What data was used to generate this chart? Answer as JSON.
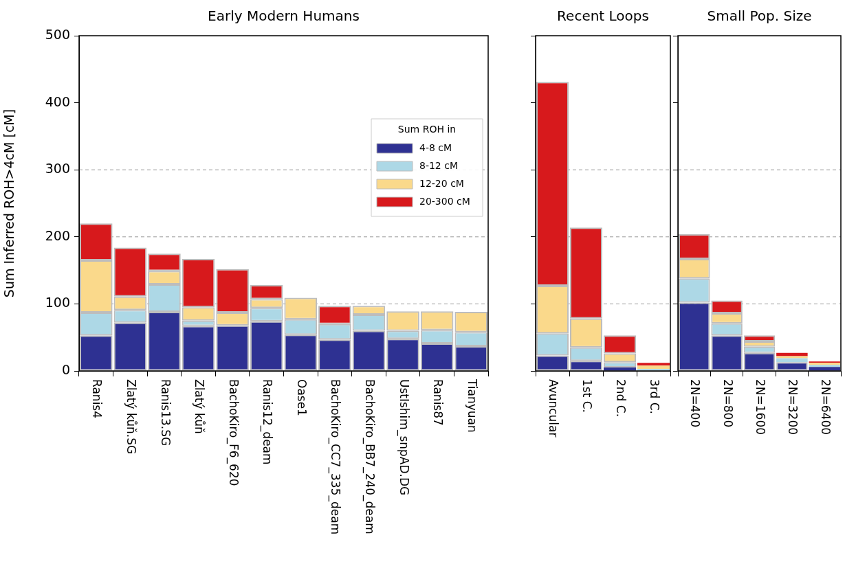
{
  "chart_data": [
    {
      "type": "bar",
      "title": "Early Modern Humans",
      "ylabel": "Sum Inferred ROH>4cM [cM]",
      "legend_title": "Sum ROH in",
      "legend": "right",
      "stacked": true,
      "grid": false,
      "categories": [
        "Ranis4",
        "Zlatý kůň.SG",
        "Ranis13.SG",
        "Zlatý kůň",
        "BachoKiro_F6_620",
        "Ranis12_deam",
        "Oase1",
        "BachoKiro_CC7_335_deam",
        "BachoKiro_BB7_240_deam",
        "UstIshim_snpAD.DG",
        "Ranis87",
        "Tianyuan"
      ],
      "ylim": [
        0,
        500
      ],
      "yticks": [
        0,
        100,
        200,
        300,
        400,
        500
      ],
      "ref_lines": [
        {
          "axis": "y",
          "value": 100,
          "color": "#999999",
          "line_style": "dashed"
        },
        {
          "axis": "y",
          "value": 200,
          "color": "#999999",
          "line_style": "dashed"
        },
        {
          "axis": "y",
          "value": 300,
          "color": "#999999",
          "line_style": "dashed"
        }
      ],
      "series": [
        {
          "name": "4-8 cM",
          "color": "#2e3192",
          "values": [
            53,
            72,
            88,
            67,
            68,
            74,
            54,
            47,
            60,
            48,
            41,
            37
          ]
        },
        {
          "name": "8-12 cM",
          "color": "#add8e6",
          "values": [
            34,
            19,
            41,
            8,
            0,
            20,
            23,
            23,
            24,
            12,
            20,
            21
          ]
        },
        {
          "name": "12-20 cM",
          "color": "#fad98b",
          "values": [
            78,
            20,
            20,
            20,
            19,
            13,
            32,
            0,
            13,
            29,
            28,
            30
          ]
        },
        {
          "name": "20-300 cM",
          "color": "#d7191c",
          "values": [
            55,
            73,
            26,
            72,
            65,
            21,
            0,
            27,
            0,
            0,
            0,
            0
          ]
        }
      ]
    },
    {
      "type": "bar",
      "title": "Recent Loops",
      "stacked": true,
      "grid": false,
      "tick_labels": "x",
      "categories": [
        "Avuncular",
        "1st C.",
        "2nd C.",
        "3rd C."
      ],
      "ylim": [
        0,
        500
      ],
      "yticks": [
        0,
        100,
        200,
        300,
        400,
        500
      ],
      "ref_lines": [
        {
          "axis": "y",
          "value": 100,
          "color": "#999999",
          "line_style": "dashed"
        },
        {
          "axis": "y",
          "value": 200,
          "color": "#999999",
          "line_style": "dashed"
        },
        {
          "axis": "y",
          "value": 300,
          "color": "#999999",
          "line_style": "dashed"
        }
      ],
      "series": [
        {
          "color": "#2e3192",
          "values": [
            23,
            15,
            5,
            null
          ]
        },
        {
          "color": "#add8e6",
          "values": [
            33,
            20,
            8,
            3
          ]
        },
        {
          "color": "#fad98b",
          "values": [
            71,
            43,
            13,
            5
          ]
        },
        {
          "color": "#d7191c",
          "values": [
            304,
            136,
            27,
            4
          ]
        }
      ]
    },
    {
      "type": "bar",
      "title": "Small Pop. Size",
      "stacked": true,
      "grid": false,
      "tick_labels": "x",
      "categories": [
        "2N=400",
        "2N=800",
        "2N=1600",
        "2N=3200",
        "2N=6400"
      ],
      "ylim": [
        0,
        500
      ],
      "yticks": [
        0,
        100,
        200,
        300,
        400,
        500
      ],
      "ref_lines": [
        {
          "axis": "y",
          "value": 100,
          "color": "#999999",
          "line_style": "dashed"
        },
        {
          "axis": "y",
          "value": 200,
          "color": "#999999",
          "line_style": "dashed"
        },
        {
          "axis": "y",
          "value": 300,
          "color": "#999999",
          "line_style": "dashed"
        }
      ],
      "series": [
        {
          "color": "#2e3192",
          "values": [
            102,
            53,
            27,
            13,
            6
          ]
        },
        {
          "color": "#add8e6",
          "values": [
            36,
            18,
            9,
            6,
            3
          ]
        },
        {
          "color": "#fad98b",
          "values": [
            29,
            15,
            8,
            3,
            3
          ]
        },
        {
          "color": "#d7191c",
          "values": [
            37,
            19,
            9,
            5,
            2
          ]
        }
      ]
    }
  ]
}
